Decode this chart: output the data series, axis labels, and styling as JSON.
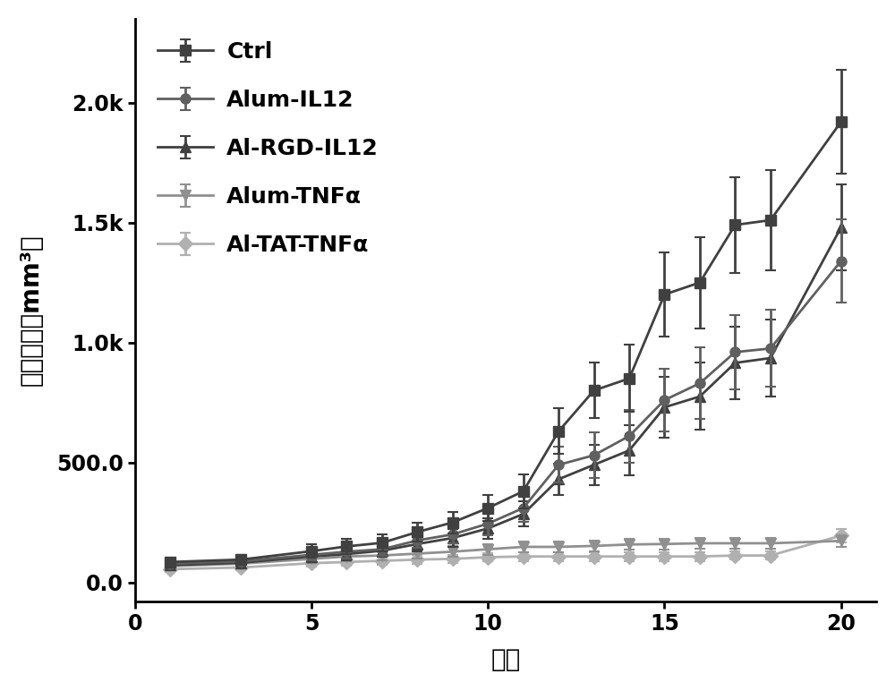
{
  "x": [
    1,
    3,
    5,
    6,
    7,
    8,
    9,
    10,
    11,
    12,
    13,
    14,
    15,
    16,
    17,
    18,
    20
  ],
  "ctrl": [
    85,
    95,
    130,
    150,
    165,
    210,
    250,
    310,
    380,
    630,
    800,
    850,
    1200,
    1250,
    1490,
    1510,
    1920
  ],
  "ctrl_err": [
    15,
    18,
    28,
    32,
    35,
    38,
    45,
    55,
    70,
    95,
    115,
    140,
    175,
    190,
    200,
    210,
    215
  ],
  "alum_il12": [
    78,
    88,
    115,
    128,
    138,
    175,
    200,
    245,
    310,
    490,
    530,
    610,
    760,
    830,
    960,
    975,
    1340
  ],
  "alum_il12_err": [
    12,
    15,
    22,
    28,
    28,
    32,
    38,
    48,
    58,
    75,
    95,
    110,
    130,
    150,
    155,
    160,
    175
  ],
  "al_rgd_il12": [
    72,
    82,
    108,
    118,
    132,
    160,
    185,
    225,
    285,
    430,
    490,
    550,
    730,
    775,
    915,
    935,
    1480
  ],
  "al_rgd_il12_err": [
    10,
    14,
    20,
    26,
    26,
    30,
    36,
    42,
    52,
    65,
    85,
    105,
    125,
    140,
    150,
    160,
    180
  ],
  "alum_tnfa": [
    68,
    78,
    98,
    108,
    112,
    120,
    128,
    138,
    148,
    148,
    152,
    158,
    160,
    163,
    163,
    163,
    173
  ],
  "alum_tnfa_err": [
    10,
    12,
    16,
    18,
    20,
    20,
    22,
    22,
    22,
    22,
    22,
    22,
    22,
    22,
    22,
    22,
    25
  ],
  "al_tat_tnfa": [
    55,
    62,
    80,
    85,
    90,
    95,
    98,
    105,
    108,
    108,
    108,
    108,
    108,
    108,
    112,
    112,
    195
  ],
  "al_tat_tnfa_err": [
    10,
    12,
    14,
    16,
    16,
    18,
    18,
    18,
    18,
    18,
    18,
    18,
    18,
    18,
    18,
    18,
    28
  ],
  "ylabel": "肝癌体积（mm³）",
  "xlabel": "天数",
  "color_ctrl": "#404040",
  "color_alum_il12": "#606060",
  "color_rgd_il12": "#404040",
  "color_alum_tnfa": "#909090",
  "color_tat_tnfa": "#b0b0b0",
  "xlim": [
    0,
    21
  ],
  "ylim": [
    -80,
    2350
  ],
  "xticks": [
    0,
    5,
    10,
    15,
    20
  ],
  "yticks": [
    0,
    500,
    1000,
    1500,
    2000
  ]
}
